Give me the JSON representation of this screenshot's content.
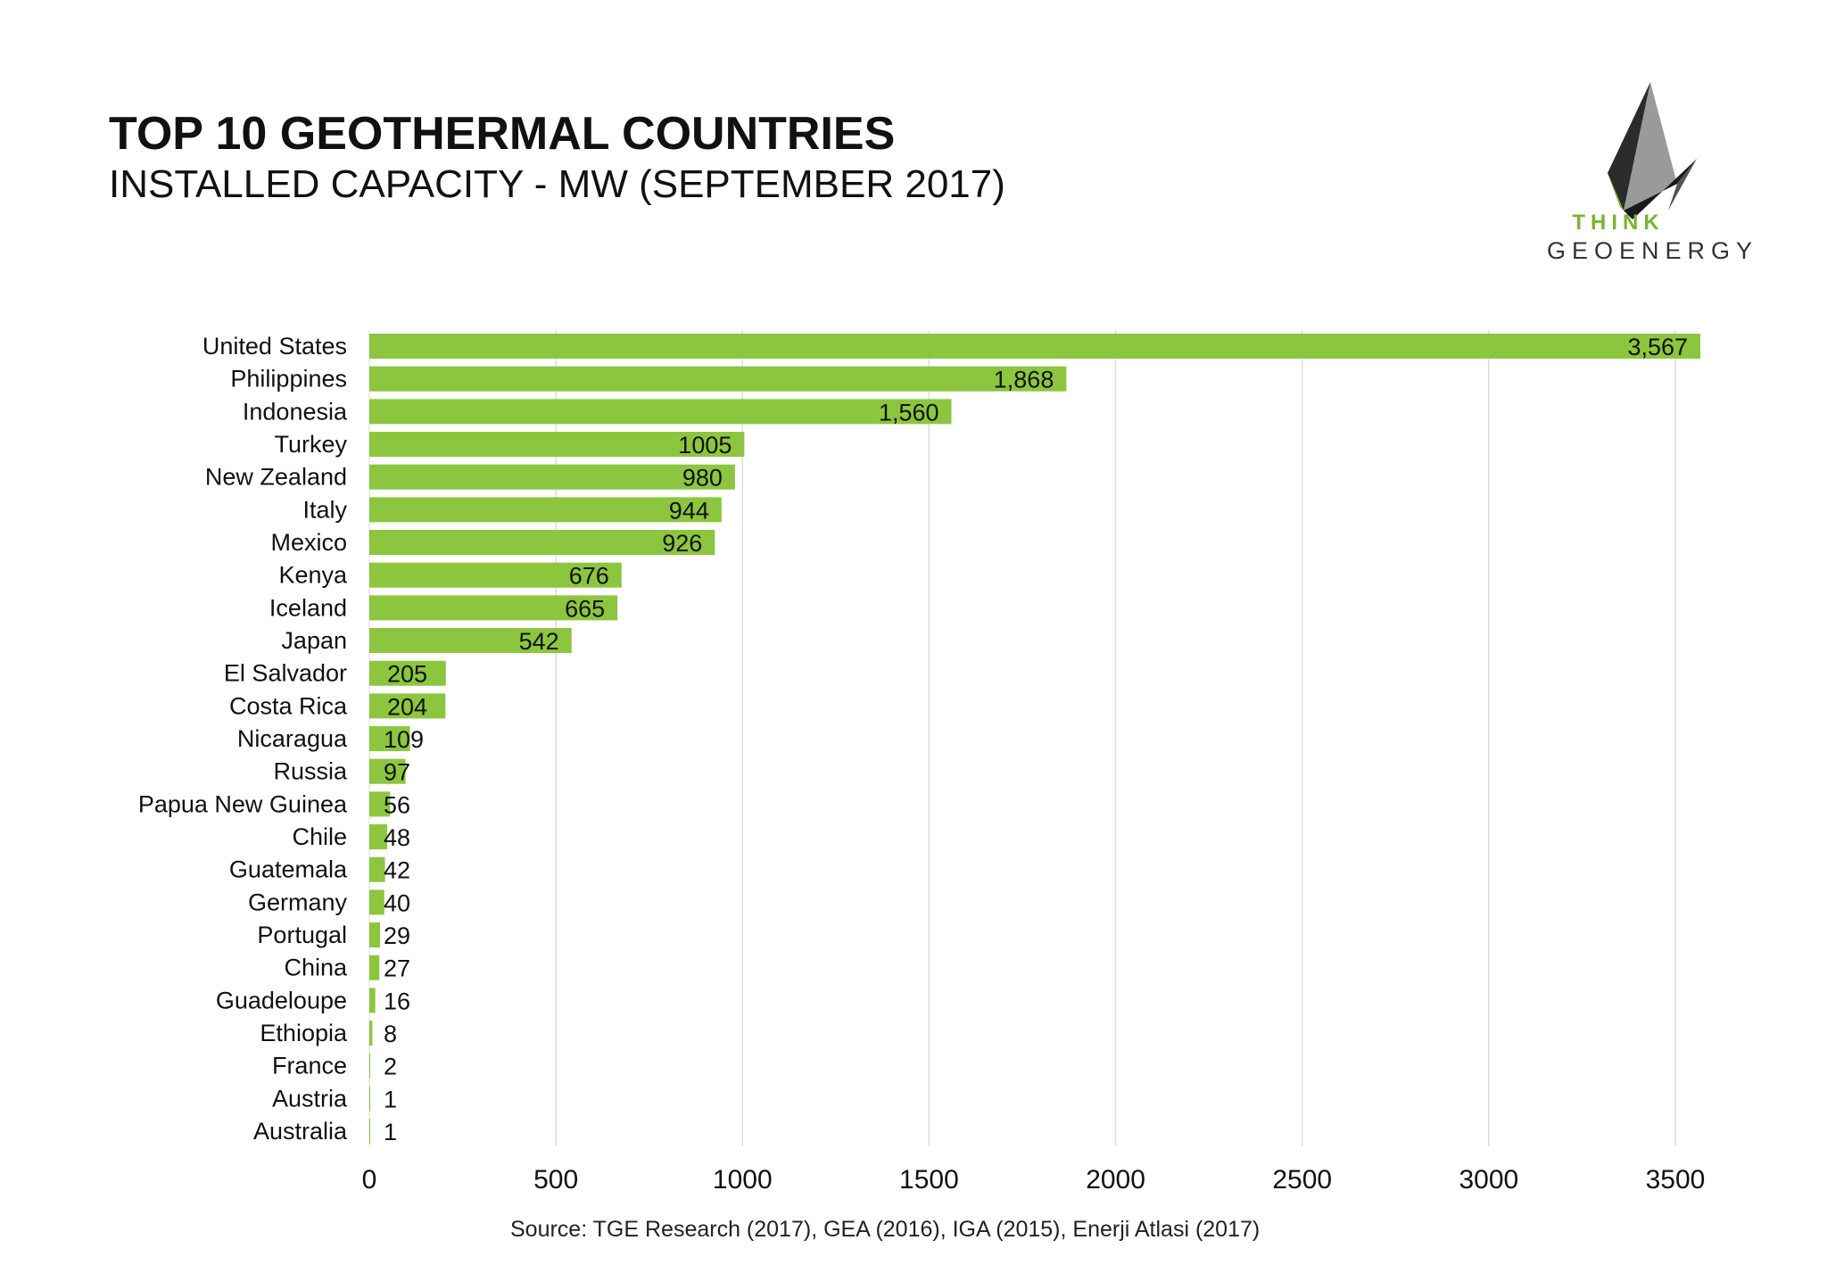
{
  "header": {
    "title": "TOP 10 GEOTHERMAL COUNTRIES",
    "subtitle": "INSTALLED CAPACITY - MW (SEPTEMBER 2017)"
  },
  "logo": {
    "line1": "THINK",
    "line2": "GEOENERGY"
  },
  "source": "Source: TGE Research (2017), GEA (2016), IGA (2015), Enerji Atlasi (2017)",
  "colors": {
    "bar": "#8cc63f",
    "grid": "#dddddd",
    "text": "#111111"
  },
  "chart_data": {
    "type": "bar",
    "orientation": "horizontal",
    "categories": [
      "United States",
      "Philippines",
      "Indonesia",
      "Turkey",
      "New Zealand",
      "Italy",
      "Mexico",
      "Kenya",
      "Iceland",
      "Japan",
      "El Salvador",
      "Costa Rica",
      "Nicaragua",
      "Russia",
      "Papua New Guinea",
      "Chile",
      "Guatemala",
      "Germany",
      "Portugal",
      "China",
      "Guadeloupe",
      "Ethiopia",
      "France",
      "Austria",
      "Australia"
    ],
    "values": [
      3567,
      1868,
      1560,
      1005,
      980,
      944,
      926,
      676,
      665,
      542,
      205,
      204,
      109,
      97,
      56,
      48,
      42,
      40,
      29,
      27,
      16,
      8,
      2,
      1,
      1
    ],
    "value_labels": [
      "3,567",
      "1,868",
      "1,560",
      "1005",
      "980",
      "944",
      "926",
      "676",
      "665",
      "542",
      "205",
      "204",
      "109",
      "97",
      "56",
      "48",
      "42",
      "40",
      "29",
      "27",
      "16",
      "8",
      "2",
      "1",
      "1"
    ],
    "xlim": [
      0,
      3500
    ],
    "xticks": [
      "0",
      "500",
      "1000",
      "1500",
      "2000",
      "2500",
      "3000",
      "3500"
    ],
    "xtick_values": [
      0,
      500,
      1000,
      1500,
      2000,
      2500,
      3000,
      3500
    ],
    "grid": true,
    "legend": "none"
  }
}
